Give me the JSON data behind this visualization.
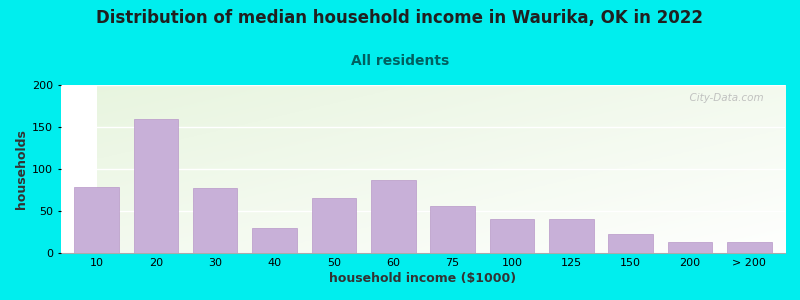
{
  "title": "Distribution of median household income in Waurika, OK in 2022",
  "subtitle": "All residents",
  "xlabel": "household income ($1000)",
  "ylabel": "households",
  "background_outer": "#00EEEE",
  "bar_color": "#c8b0d8",
  "bar_edge_color": "#b898c8",
  "categories": [
    "10",
    "20",
    "30",
    "40",
    "50",
    "60",
    "75",
    "100",
    "125",
    "150",
    "200",
    "> 200"
  ],
  "values": [
    78,
    160,
    77,
    30,
    65,
    87,
    56,
    40,
    40,
    22,
    13,
    13
  ],
  "ylim": [
    0,
    200
  ],
  "yticks": [
    0,
    50,
    100,
    150,
    200
  ],
  "watermark": "  City-Data.com",
  "title_fontsize": 12,
  "subtitle_fontsize": 10,
  "axis_label_fontsize": 9,
  "subtitle_color": "#006060",
  "title_color": "#202020"
}
